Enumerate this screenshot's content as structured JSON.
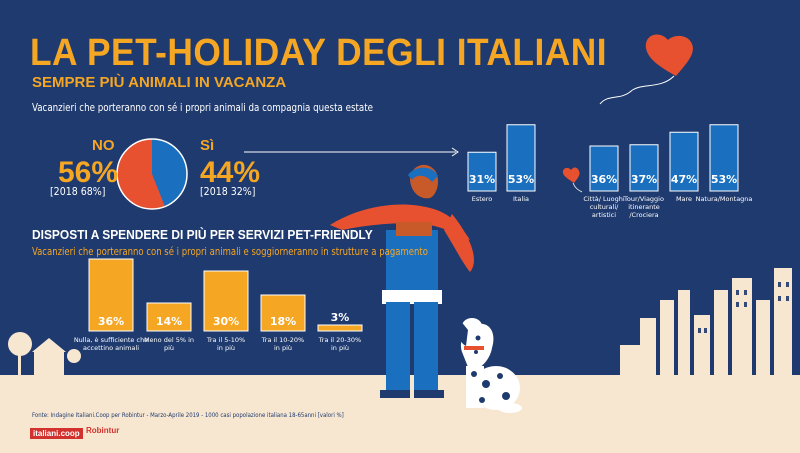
{
  "title": "LA PET-HOLIDAY DEGLI ITALIANI",
  "subtitle": "SEMPRE PIÙ ANIMALI IN VACANZA",
  "intro": "Vacanzieri che porteranno con sé i propri animali da compagnia questa estate",
  "pie": {
    "no_label": "NO",
    "no_value": "56%",
    "no_2018": "[2018 68%]",
    "yes_label": "Sì",
    "yes_value": "44%",
    "yes_2018": "[2018 32%]",
    "colors": {
      "no": "#e8512f",
      "yes": "#1b6fbf"
    }
  },
  "section2": {
    "title": "DISPOSTI A SPENDERE DI PIÙ PER SERVIZI PET-FRIENDLY",
    "subtitle": "Vacanzieri che porteranno con  sé i propri animali e soggiorneranno in strutture a pagamento"
  },
  "source": "Fonte: Indagine Italiani.Coop per Robintur - Marzo-Aprile 2019 - 1000 casi popolazione italiana 18-65anni [valori %]",
  "brands": {
    "coop": "italiani.coop",
    "robintur": "Robintur"
  },
  "chart_data": [
    {
      "type": "bar",
      "categories": [
        "Estero",
        "Italia",
        "Città/ Luoghi culturali/ artistici",
        "Tour/Viaggio itinerante /Crociera",
        "Mare",
        "Natura/Montagna"
      ],
      "values": [
        31,
        53,
        36,
        37,
        47,
        53
      ],
      "value_labels": [
        "31%",
        "53%",
        "36%",
        "37%",
        "47%",
        "53%"
      ],
      "colors": {
        "bar": "#1b6fbf",
        "outline": "#ffffff"
      }
    },
    {
      "type": "bar",
      "categories": [
        "Nulla, è sufficiente che accettino animali",
        "Meno del 5% in più",
        "Tra il 5-10% in più",
        "Tra il 10-20% in più",
        "Tra il 20-30% in più"
      ],
      "values": [
        36,
        14,
        30,
        18,
        3
      ],
      "value_labels": [
        "36%",
        "14%",
        "30%",
        "18%",
        "3%"
      ],
      "colors": {
        "bar": "#f5a623",
        "outline": "#ffffff"
      }
    }
  ],
  "colors": {
    "background": "#1f3a6e",
    "ground": "#f7e7d1",
    "accent": "#f5a623",
    "red": "#e8512f"
  }
}
